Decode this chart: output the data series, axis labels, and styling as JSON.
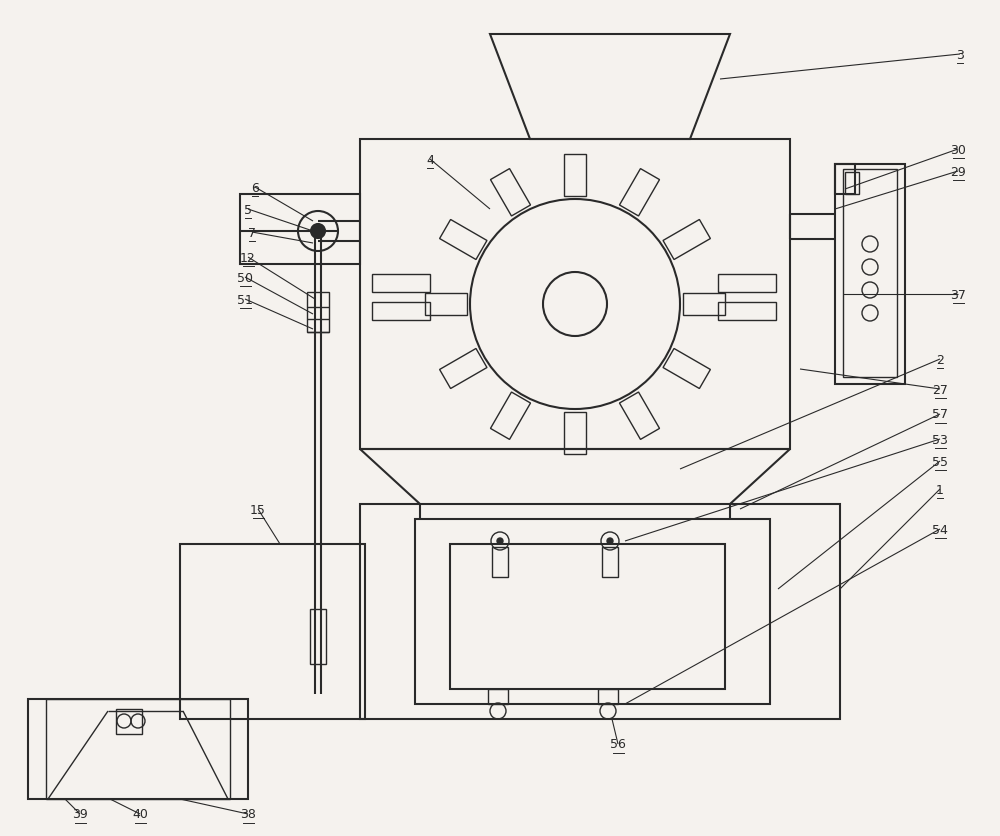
{
  "bg_color": "#f5f2ee",
  "line_color": "#2a2a2a",
  "lw_main": 1.5,
  "lw_thin": 1.0,
  "lw_leader": 0.8,
  "fs_label": 9
}
